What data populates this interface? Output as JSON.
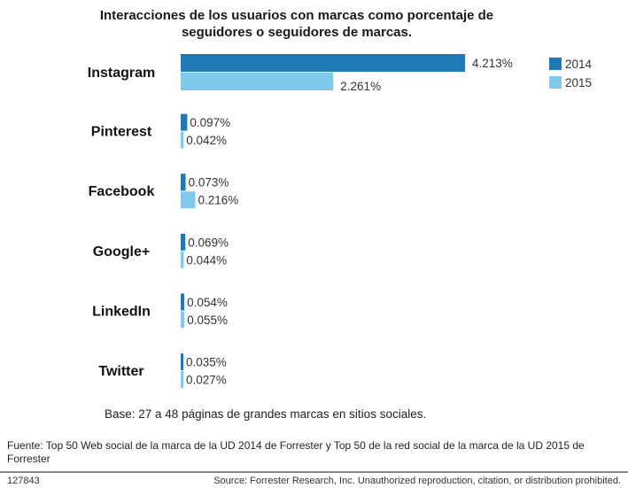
{
  "chart_data": {
    "type": "bar",
    "orientation": "horizontal",
    "title": "Interacciones de los usuarios con marcas como porcentaje de seguidores o seguidores de marcas.",
    "categories": [
      "Instagram",
      "Pinterest",
      "Facebook",
      "Google+",
      "LinkedIn",
      "Twitter"
    ],
    "series": [
      {
        "name": "2014",
        "color": "#1f7ab4",
        "values": [
          4.213,
          0.097,
          0.073,
          0.069,
          0.054,
          0.035
        ],
        "labels": [
          "4.213%",
          "0.097%",
          "0.073%",
          "0.069%",
          "0.054%",
          "0.035%"
        ]
      },
      {
        "name": "2015",
        "color": "#80c9ec",
        "values": [
          2.261,
          0.042,
          0.216,
          0.044,
          0.055,
          0.027
        ],
        "labels": [
          "2.261%",
          "0.042%",
          "0.216%",
          "0.044%",
          "0.055%",
          "0.027%"
        ]
      }
    ],
    "unit": "%",
    "legend": "top-right",
    "grid": false
  },
  "notes": {
    "base": "Base: 27 a 48 páginas de grandes marcas en sitios sociales.",
    "fuente": "Fuente: Top 50 Web social de la marca de la UD 2014 de Forrester y Top 50 de la red social de la marca de la UD 2015 de Forrester",
    "code": "127843",
    "source": "Source: Forrester Research, Inc. Unauthorized reproduction, citation, or distribution prohibited."
  }
}
